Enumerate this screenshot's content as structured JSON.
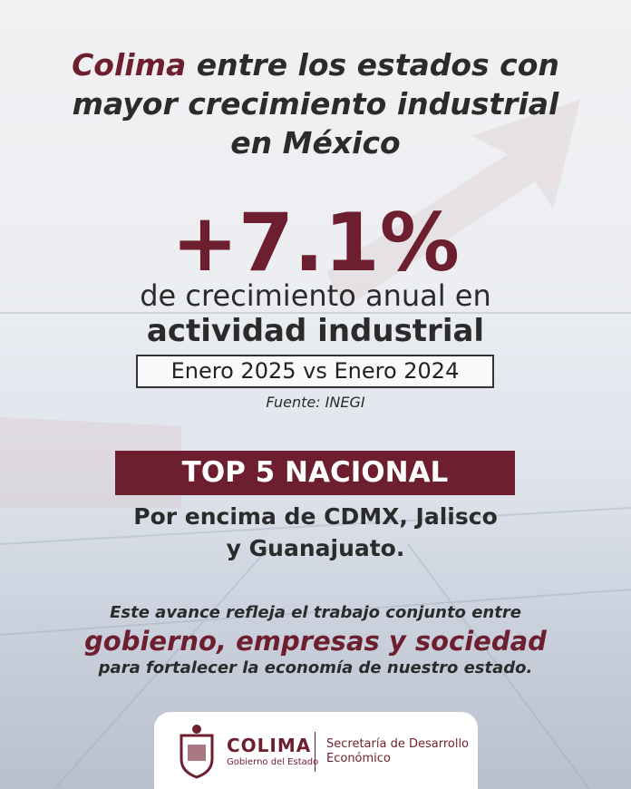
{
  "header": {
    "title_highlight": "Colima",
    "title_lines": [
      "entre los estados con",
      "mayor crecimiento industrial",
      "en México"
    ]
  },
  "stat": {
    "value": "+7.1%",
    "line1": "de crecimiento anual en",
    "line2": "actividad industrial",
    "period": "Enero 2025 vs Enero 2024",
    "source": "Fuente: INEGI"
  },
  "ranking": {
    "badge": "TOP 5 NACIONAL",
    "lines": [
      "Por encima de CDMX, Jalisco",
      "y Guanajuato."
    ]
  },
  "message": {
    "line1": "Este avance refleja el trabajo conjunto entre",
    "highlight": "gobierno, empresas y sociedad",
    "line3": "para fortalecer la economía de nuestro estado."
  },
  "footer": {
    "brand": "COLIMA",
    "brand_sub": "Gobierno del Estado",
    "dept": "Secretaría de Desarrollo Económico"
  }
}
